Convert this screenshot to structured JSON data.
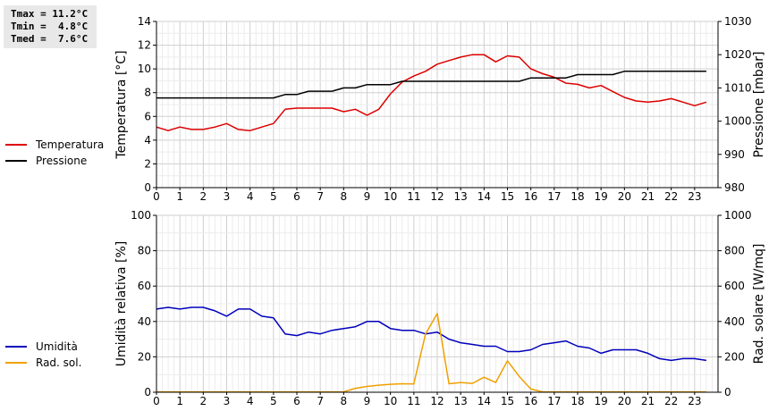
{
  "stats": {
    "tmax": "Tmax = 11.2°C",
    "tmin": "Tmin =  4.8°C",
    "tmed": "Tmed =  7.6°C"
  },
  "chart_data": [
    {
      "type": "line",
      "xlim": [
        0,
        24
      ],
      "x_ticks": [
        "0",
        "1",
        "2",
        "3",
        "4",
        "5",
        "6",
        "7",
        "8",
        "9",
        "10",
        "11",
        "12",
        "13",
        "14",
        "15",
        "16",
        "17",
        "18",
        "19",
        "20",
        "21",
        "22",
        "23"
      ],
      "y_left": {
        "label": "Temperatura [°C]",
        "lim": [
          0,
          14
        ],
        "ticks": [
          "0",
          "2",
          "4",
          "6",
          "8",
          "10",
          "12",
          "14"
        ]
      },
      "y_right": {
        "label": "Pressione [mbar]",
        "lim": [
          980,
          1030
        ],
        "ticks": [
          "980",
          "990",
          "1000",
          "1010",
          "1020",
          "1030"
        ]
      },
      "grid": true,
      "series": [
        {
          "name": "Temperatura",
          "color": "#dd0000",
          "axis": "left",
          "x": [
            0,
            0.5,
            1,
            1.5,
            2,
            2.5,
            3,
            3.5,
            4,
            4.5,
            5,
            5.5,
            6,
            6.5,
            7,
            7.5,
            8,
            8.5,
            9,
            9.5,
            10,
            10.5,
            11,
            11.5,
            12,
            12.5,
            13,
            13.5,
            14,
            14.5,
            15,
            15.5,
            16,
            16.5,
            17,
            17.5,
            18,
            18.5,
            19,
            19.5,
            20,
            20.5,
            21,
            21.5,
            22,
            22.5,
            23,
            23.5
          ],
          "y": [
            5.1,
            4.8,
            5.1,
            4.9,
            4.9,
            5.1,
            5.4,
            4.9,
            4.8,
            5.1,
            5.4,
            6.6,
            6.7,
            6.7,
            6.7,
            6.7,
            6.4,
            6.6,
            6.1,
            6.6,
            7.9,
            8.9,
            9.4,
            9.8,
            10.4,
            10.7,
            11.0,
            11.2,
            11.2,
            10.6,
            11.1,
            11.0,
            10.0,
            9.6,
            9.3,
            8.8,
            8.7,
            8.4,
            8.6,
            8.1,
            7.6,
            7.3,
            7.2,
            7.3,
            7.5,
            7.2,
            6.9,
            7.2
          ]
        },
        {
          "name": "Pressione",
          "color": "#000000",
          "axis": "right",
          "x": [
            0,
            0.5,
            1,
            1.5,
            2,
            2.5,
            3,
            3.5,
            4,
            4.5,
            5,
            5.5,
            6,
            6.5,
            7,
            7.5,
            8,
            8.5,
            9,
            9.5,
            10,
            10.5,
            11,
            11.5,
            12,
            12.5,
            13,
            13.5,
            14,
            14.5,
            15,
            15.5,
            16,
            16.5,
            17,
            17.5,
            18,
            18.5,
            19,
            19.5,
            20,
            20.5,
            21,
            21.5,
            22,
            22.5,
            23,
            23.5
          ],
          "y": [
            1007,
            1007,
            1007,
            1007,
            1007,
            1007,
            1007,
            1007,
            1007,
            1007,
            1007,
            1008,
            1008,
            1009,
            1009,
            1009,
            1010,
            1010,
            1011,
            1011,
            1011,
            1012,
            1012,
            1012,
            1012,
            1012,
            1012,
            1012,
            1012,
            1012,
            1012,
            1012,
            1013,
            1013,
            1013,
            1013,
            1014,
            1014,
            1014,
            1014,
            1015,
            1015,
            1015,
            1015,
            1015,
            1015,
            1015,
            1015
          ]
        }
      ]
    },
    {
      "type": "line",
      "xlim": [
        0,
        24
      ],
      "x_ticks": [
        "0",
        "1",
        "2",
        "3",
        "4",
        "5",
        "6",
        "7",
        "8",
        "9",
        "10",
        "11",
        "12",
        "13",
        "14",
        "15",
        "16",
        "17",
        "18",
        "19",
        "20",
        "21",
        "22",
        "23"
      ],
      "y_left": {
        "label": "Umidità relativa [%]",
        "lim": [
          0,
          100
        ],
        "ticks": [
          "0",
          "20",
          "40",
          "60",
          "80",
          "100"
        ]
      },
      "y_right": {
        "label": "Rad. solare [W/mq]",
        "lim": [
          0,
          1000
        ],
        "ticks": [
          "0",
          "200",
          "400",
          "600",
          "800",
          "1000"
        ]
      },
      "grid": true,
      "series": [
        {
          "name": "Umidità",
          "color": "#0000bb",
          "axis": "left",
          "x": [
            0,
            0.5,
            1,
            1.5,
            2,
            2.5,
            3,
            3.5,
            4,
            4.5,
            5,
            5.5,
            6,
            6.5,
            7,
            7.5,
            8,
            8.5,
            9,
            9.5,
            10,
            10.5,
            11,
            11.5,
            12,
            12.5,
            13,
            13.5,
            14,
            14.5,
            15,
            15.5,
            16,
            16.5,
            17,
            17.5,
            18,
            18.5,
            19,
            19.5,
            20,
            20.5,
            21,
            21.5,
            22,
            22.5,
            23,
            23.5
          ],
          "y": [
            47,
            48,
            47,
            48,
            48,
            46,
            43,
            47,
            47,
            43,
            42,
            33,
            32,
            34,
            33,
            35,
            36,
            37,
            40,
            40,
            36,
            35,
            35,
            33,
            34,
            30,
            28,
            27,
            26,
            26,
            23,
            23,
            24,
            27,
            28,
            29,
            26,
            25,
            22,
            24,
            24,
            24,
            22,
            19,
            18,
            19,
            19,
            18
          ]
        },
        {
          "name": "Rad. sol.",
          "color": "#f0a000",
          "axis": "right",
          "x": [
            0,
            0.5,
            1,
            1.5,
            2,
            2.5,
            3,
            3.5,
            4,
            4.5,
            5,
            5.5,
            6,
            6.5,
            7,
            7.5,
            8,
            8.5,
            9,
            9.5,
            10,
            10.5,
            11,
            11.5,
            12,
            12.5,
            13,
            13.5,
            14,
            14.5,
            15,
            15.5,
            16,
            16.5,
            17,
            17.5,
            18,
            18.5,
            19,
            19.5,
            20,
            20.5,
            21,
            21.5,
            22,
            22.5,
            23,
            23.5
          ],
          "y": [
            2,
            2,
            2,
            2,
            2,
            2,
            2,
            2,
            2,
            2,
            2,
            2,
            2,
            2,
            2,
            2,
            2,
            22,
            33,
            40,
            45,
            48,
            47,
            330,
            445,
            48,
            55,
            50,
            85,
            55,
            178,
            90,
            18,
            2,
            2,
            2,
            2,
            2,
            2,
            2,
            2,
            2,
            2,
            2,
            2,
            2,
            2,
            2
          ]
        }
      ]
    }
  ]
}
